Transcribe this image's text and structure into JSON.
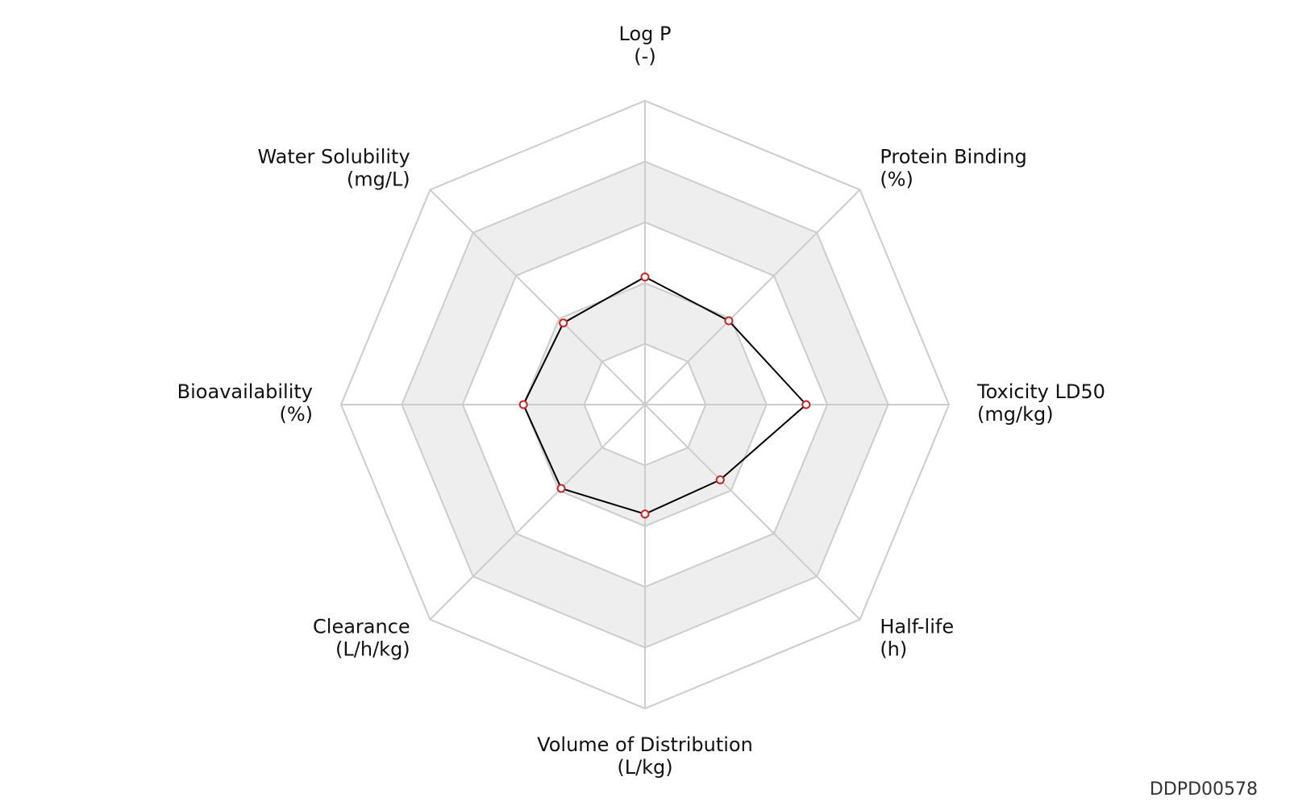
{
  "chart_data": {
    "type": "radar",
    "axes": [
      {
        "name": "Log P",
        "unit": "(-)",
        "value": 0.42
      },
      {
        "name": "Protein Binding",
        "unit": "(%)",
        "value": 0.39
      },
      {
        "name": "Toxicity LD50",
        "unit": "(mg/kg)",
        "value": 0.53
      },
      {
        "name": "Half-life",
        "unit": "(h)",
        "value": 0.35
      },
      {
        "name": "Volume of Distribution",
        "unit": "(L/kg)",
        "value": 0.36
      },
      {
        "name": "Clearance",
        "unit": "(L/h/kg)",
        "value": 0.39
      },
      {
        "name": "Bioavailability",
        "unit": "(%)",
        "value": 0.4
      },
      {
        "name": "Water Solubility",
        "unit": "(mg/L)",
        "value": 0.38
      }
    ],
    "rlim": [
      0,
      1
    ],
    "rings": 5,
    "grid": true,
    "colors": {
      "line": "#000000",
      "marker_edge": "#cc2222",
      "marker_fill": "#ffffff",
      "grid": "#cccccc",
      "band": "#eeeeee"
    }
  },
  "code": "DDPD00578"
}
